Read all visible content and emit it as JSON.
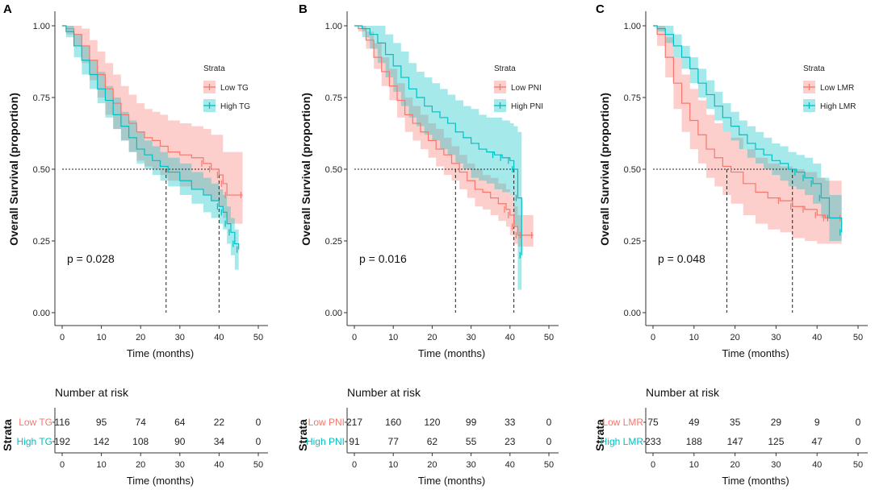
{
  "chart_data": [
    {
      "type": "line",
      "panel": "A",
      "title": "",
      "xlabel": "Time (months)",
      "ylabel": "Overall Survival (proportion)",
      "xlim": [
        0,
        50
      ],
      "ylim": [
        0,
        1
      ],
      "xticks": [
        "0",
        "10",
        "20",
        "30",
        "40",
        "50"
      ],
      "yticks": [
        "0.00",
        "0.25",
        "0.50",
        "0.75",
        "1.00"
      ],
      "grid": false,
      "legend": {
        "title": "Strata",
        "position": "top-right"
      },
      "p_value": "p = 0.028",
      "medians": [
        26.5,
        40
      ],
      "series": [
        {
          "name": "Low TG",
          "color": "#F8766D",
          "x": [
            0,
            1,
            3,
            5,
            7,
            9,
            11,
            13,
            15,
            17,
            19,
            21,
            23,
            25,
            27,
            30,
            33,
            36,
            38,
            40,
            41,
            42,
            46
          ],
          "y": [
            1.0,
            0.99,
            0.97,
            0.93,
            0.88,
            0.83,
            0.78,
            0.73,
            0.69,
            0.66,
            0.63,
            0.61,
            0.6,
            0.58,
            0.56,
            0.55,
            0.54,
            0.52,
            0.5,
            0.48,
            0.45,
            0.41,
            0.41
          ],
          "upper": [
            1.0,
            1.0,
            1.0,
            0.99,
            0.95,
            0.91,
            0.87,
            0.83,
            0.79,
            0.76,
            0.73,
            0.71,
            0.7,
            0.69,
            0.67,
            0.66,
            0.65,
            0.64,
            0.62,
            0.62,
            0.56,
            0.56,
            0.56
          ],
          "lower": [
            1.0,
            0.97,
            0.93,
            0.87,
            0.81,
            0.75,
            0.69,
            0.64,
            0.6,
            0.56,
            0.53,
            0.51,
            0.5,
            0.48,
            0.46,
            0.44,
            0.43,
            0.41,
            0.39,
            0.37,
            0.33,
            0.31,
            0.31
          ]
        },
        {
          "name": "High TG",
          "color": "#00BFC4",
          "x": [
            0,
            1,
            3,
            5,
            7,
            9,
            11,
            13,
            15,
            17,
            19,
            21,
            23,
            25,
            27,
            30,
            33,
            36,
            38,
            40,
            41,
            42,
            43,
            44,
            45
          ],
          "y": [
            1.0,
            0.98,
            0.93,
            0.88,
            0.83,
            0.78,
            0.74,
            0.69,
            0.65,
            0.61,
            0.57,
            0.55,
            0.53,
            0.51,
            0.49,
            0.46,
            0.43,
            0.41,
            0.39,
            0.37,
            0.35,
            0.31,
            0.28,
            0.24,
            0.22
          ],
          "upper": [
            1.0,
            1.0,
            0.97,
            0.93,
            0.88,
            0.84,
            0.79,
            0.75,
            0.7,
            0.67,
            0.63,
            0.6,
            0.58,
            0.56,
            0.54,
            0.52,
            0.49,
            0.47,
            0.45,
            0.43,
            0.41,
            0.37,
            0.33,
            0.29,
            0.29
          ],
          "lower": [
            1.0,
            0.96,
            0.89,
            0.83,
            0.78,
            0.73,
            0.68,
            0.64,
            0.6,
            0.56,
            0.52,
            0.5,
            0.48,
            0.46,
            0.44,
            0.41,
            0.38,
            0.35,
            0.33,
            0.31,
            0.29,
            0.24,
            0.2,
            0.15,
            0.14
          ]
        }
      ],
      "risk_table": {
        "title": "Number at risk",
        "strata_title": "Strata",
        "rows": [
          {
            "label": "Low TG",
            "color": "#F8766D",
            "values": [
              "116",
              "95",
              "74",
              "64",
              "22",
              "0"
            ]
          },
          {
            "label": "High TG",
            "color": "#00BFC4",
            "values": [
              "192",
              "142",
              "108",
              "90",
              "34",
              "0"
            ]
          }
        ]
      }
    },
    {
      "type": "line",
      "panel": "B",
      "title": "",
      "xlabel": "Time (months)",
      "ylabel": "Overall Survival (proportion)",
      "xlim": [
        0,
        50
      ],
      "ylim": [
        0,
        1
      ],
      "xticks": [
        "0",
        "10",
        "20",
        "30",
        "40",
        "50"
      ],
      "yticks": [
        "0.00",
        "0.25",
        "0.50",
        "0.75",
        "1.00"
      ],
      "grid": false,
      "legend": {
        "title": "Strata",
        "position": "top-right"
      },
      "p_value": "p = 0.016",
      "medians": [
        26,
        41
      ],
      "series": [
        {
          "name": "Low PNI",
          "color": "#F8766D",
          "x": [
            0,
            1,
            3,
            5,
            7,
            9,
            11,
            13,
            15,
            17,
            19,
            21,
            23,
            25,
            27,
            29,
            31,
            33,
            35,
            37,
            39,
            40,
            41,
            42,
            43,
            46
          ],
          "y": [
            1.0,
            0.99,
            0.95,
            0.89,
            0.84,
            0.79,
            0.74,
            0.69,
            0.66,
            0.63,
            0.6,
            0.57,
            0.55,
            0.52,
            0.49,
            0.46,
            0.43,
            0.42,
            0.4,
            0.38,
            0.36,
            0.34,
            0.3,
            0.27,
            0.27,
            0.27
          ],
          "upper": [
            1.0,
            1.0,
            0.98,
            0.94,
            0.89,
            0.85,
            0.8,
            0.75,
            0.72,
            0.69,
            0.66,
            0.64,
            0.61,
            0.58,
            0.55,
            0.52,
            0.5,
            0.48,
            0.47,
            0.45,
            0.43,
            0.41,
            0.37,
            0.34,
            0.34,
            0.34
          ],
          "lower": [
            1.0,
            0.98,
            0.92,
            0.85,
            0.79,
            0.74,
            0.68,
            0.63,
            0.6,
            0.57,
            0.54,
            0.51,
            0.48,
            0.46,
            0.43,
            0.4,
            0.37,
            0.36,
            0.34,
            0.32,
            0.3,
            0.27,
            0.24,
            0.23,
            0.23,
            0.23
          ]
        },
        {
          "name": "High PNI",
          "color": "#00BFC4",
          "x": [
            0,
            2,
            4,
            6,
            8,
            10,
            12,
            14,
            16,
            18,
            20,
            22,
            24,
            26,
            28,
            30,
            32,
            34,
            36,
            38,
            40,
            41,
            42,
            43
          ],
          "y": [
            1.0,
            0.99,
            0.97,
            0.94,
            0.9,
            0.86,
            0.82,
            0.78,
            0.75,
            0.72,
            0.7,
            0.68,
            0.66,
            0.63,
            0.61,
            0.59,
            0.57,
            0.56,
            0.55,
            0.54,
            0.53,
            0.5,
            0.4,
            0.2
          ],
          "upper": [
            1.0,
            1.0,
            1.0,
            1.0,
            0.97,
            0.94,
            0.91,
            0.87,
            0.84,
            0.82,
            0.8,
            0.78,
            0.76,
            0.74,
            0.72,
            0.71,
            0.69,
            0.68,
            0.68,
            0.67,
            0.66,
            0.65,
            0.63,
            0.63
          ],
          "lower": [
            1.0,
            0.96,
            0.92,
            0.87,
            0.82,
            0.77,
            0.72,
            0.68,
            0.65,
            0.62,
            0.6,
            0.57,
            0.55,
            0.52,
            0.5,
            0.47,
            0.46,
            0.45,
            0.43,
            0.42,
            0.41,
            0.3,
            0.08,
            0.05
          ]
        }
      ],
      "risk_table": {
        "title": "Number at risk",
        "strata_title": "Strata",
        "rows": [
          {
            "label": "Low PNI",
            "color": "#F8766D",
            "values": [
              "217",
              "160",
              "120",
              "99",
              "33",
              "0"
            ]
          },
          {
            "label": "High PNI",
            "color": "#00BFC4",
            "values": [
              "91",
              "77",
              "62",
              "55",
              "23",
              "0"
            ]
          }
        ]
      }
    },
    {
      "type": "line",
      "panel": "C",
      "title": "",
      "xlabel": "Time (months)",
      "ylabel": "Overall Survival (proportion)",
      "xlim": [
        0,
        50
      ],
      "ylim": [
        0,
        1
      ],
      "xticks": [
        "0",
        "10",
        "20",
        "30",
        "40",
        "50"
      ],
      "yticks": [
        "0.00",
        "0.25",
        "0.50",
        "0.75",
        "1.00"
      ],
      "grid": false,
      "legend": {
        "title": "Strata",
        "position": "top-right"
      },
      "p_value": "p = 0.048",
      "medians": [
        18,
        34
      ],
      "series": [
        {
          "name": "Low LMR",
          "color": "#F8766D",
          "x": [
            0,
            1,
            3,
            5,
            7,
            9,
            11,
            13,
            15,
            17,
            19,
            22,
            25,
            28,
            31,
            34,
            37,
            40,
            42,
            46
          ],
          "y": [
            1.0,
            0.97,
            0.89,
            0.8,
            0.73,
            0.67,
            0.62,
            0.57,
            0.54,
            0.51,
            0.49,
            0.45,
            0.42,
            0.4,
            0.39,
            0.37,
            0.36,
            0.34,
            0.33,
            0.33
          ],
          "upper": [
            1.0,
            1.0,
            0.96,
            0.89,
            0.83,
            0.78,
            0.74,
            0.69,
            0.66,
            0.63,
            0.61,
            0.57,
            0.54,
            0.52,
            0.51,
            0.5,
            0.49,
            0.47,
            0.46,
            0.46
          ],
          "lower": [
            1.0,
            0.93,
            0.82,
            0.71,
            0.63,
            0.57,
            0.52,
            0.47,
            0.44,
            0.41,
            0.38,
            0.34,
            0.31,
            0.29,
            0.28,
            0.26,
            0.25,
            0.24,
            0.24,
            0.24
          ]
        },
        {
          "name": "High LMR",
          "color": "#00BFC4",
          "x": [
            0,
            1,
            3,
            5,
            7,
            9,
            11,
            13,
            15,
            17,
            19,
            21,
            23,
            25,
            27,
            29,
            31,
            33,
            35,
            37,
            39,
            41,
            43,
            46
          ],
          "y": [
            1.0,
            0.99,
            0.97,
            0.93,
            0.89,
            0.85,
            0.8,
            0.76,
            0.72,
            0.68,
            0.65,
            0.62,
            0.59,
            0.57,
            0.55,
            0.53,
            0.52,
            0.5,
            0.49,
            0.47,
            0.45,
            0.4,
            0.33,
            0.28
          ],
          "upper": [
            1.0,
            1.0,
            1.0,
            0.97,
            0.93,
            0.89,
            0.85,
            0.81,
            0.77,
            0.73,
            0.7,
            0.67,
            0.65,
            0.63,
            0.61,
            0.59,
            0.58,
            0.56,
            0.55,
            0.54,
            0.52,
            0.47,
            0.41,
            0.41
          ],
          "lower": [
            1.0,
            0.98,
            0.94,
            0.89,
            0.85,
            0.8,
            0.75,
            0.71,
            0.67,
            0.63,
            0.6,
            0.57,
            0.54,
            0.52,
            0.5,
            0.48,
            0.46,
            0.44,
            0.43,
            0.41,
            0.38,
            0.33,
            0.25,
            0.2
          ]
        }
      ],
      "risk_table": {
        "title": "Number at risk",
        "strata_title": "Strata",
        "rows": [
          {
            "label": "Low LMR",
            "color": "#F8766D",
            "values": [
              "75",
              "49",
              "35",
              "29",
              "9",
              "0"
            ]
          },
          {
            "label": "High LMR",
            "color": "#00BFC4",
            "values": [
              "233",
              "188",
              "147",
              "125",
              "47",
              "0"
            ]
          }
        ]
      }
    }
  ]
}
